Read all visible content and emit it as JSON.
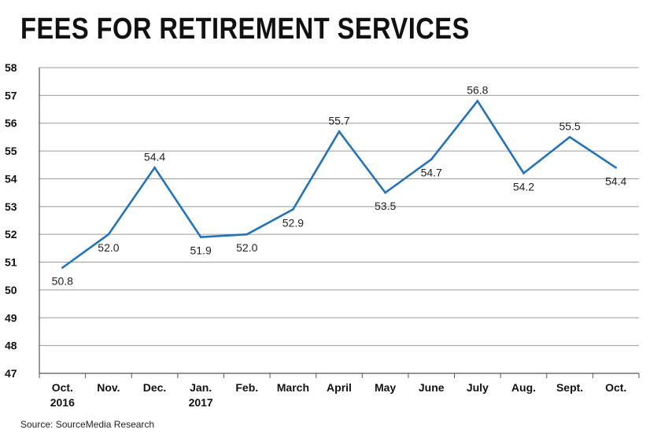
{
  "title": "FEES FOR RETIREMENT SERVICES",
  "source": "Source: SourceMedia Research",
  "chart_data": {
    "type": "line",
    "title": "FEES FOR RETIREMENT SERVICES",
    "xlabel": "",
    "ylabel": "",
    "ylim": [
      47,
      58
    ],
    "yticks": [
      47,
      48,
      49,
      50,
      51,
      52,
      53,
      54,
      55,
      56,
      57,
      58
    ],
    "grid": true,
    "categories": [
      {
        "line1": "Oct.",
        "line2": "2016"
      },
      {
        "line1": "Nov.",
        "line2": ""
      },
      {
        "line1": "Dec.",
        "line2": ""
      },
      {
        "line1": "Jan.",
        "line2": "2017"
      },
      {
        "line1": "Feb.",
        "line2": ""
      },
      {
        "line1": "March",
        "line2": ""
      },
      {
        "line1": "April",
        "line2": ""
      },
      {
        "line1": "May",
        "line2": ""
      },
      {
        "line1": "June",
        "line2": ""
      },
      {
        "line1": "July",
        "line2": ""
      },
      {
        "line1": "Aug.",
        "line2": ""
      },
      {
        "line1": "Sept.",
        "line2": ""
      },
      {
        "line1": "Oct.",
        "line2": ""
      }
    ],
    "series": [
      {
        "name": "Fees",
        "color": "#2273b8",
        "values": [
          50.8,
          52.0,
          54.4,
          51.9,
          52.0,
          52.9,
          55.7,
          53.5,
          54.7,
          56.8,
          54.2,
          55.5,
          54.4
        ],
        "labels": [
          "50.8",
          "52.0",
          "54.4",
          "51.9",
          "52.0",
          "52.9",
          "55.7",
          "53.5",
          "54.7",
          "56.8",
          "54.2",
          "55.5",
          "54.4"
        ],
        "label_positions": [
          "below",
          "below",
          "above",
          "below",
          "below",
          "below",
          "above",
          "below",
          "below",
          "above",
          "below",
          "above",
          "below"
        ]
      }
    ]
  }
}
